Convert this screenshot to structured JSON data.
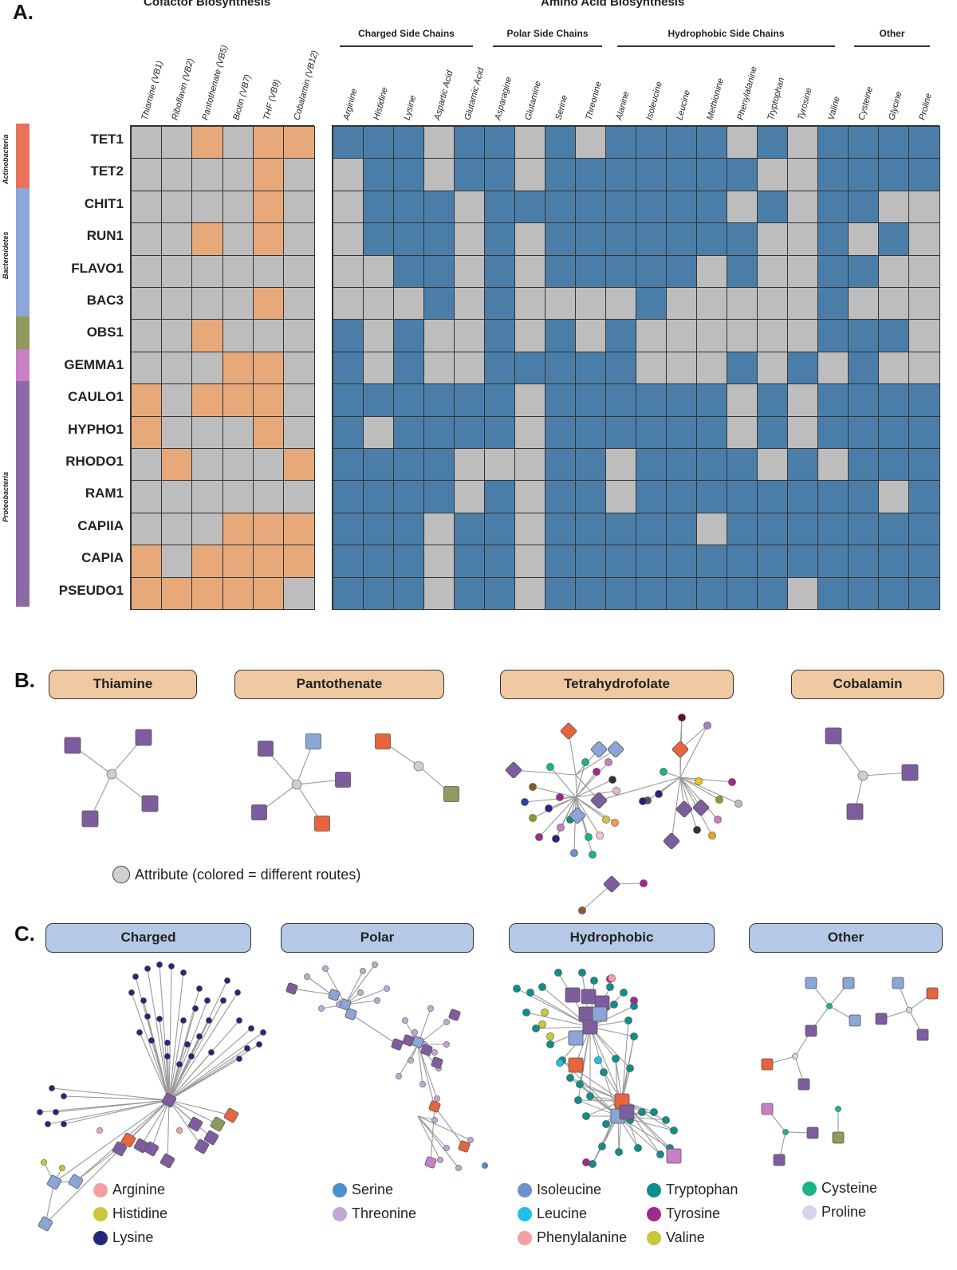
{
  "panels": {
    "a": "A.",
    "b": "B.",
    "c": "C."
  },
  "colors": {
    "present": "#4a7ea8",
    "absent": "#bdbdbd",
    "cofactor": "#e7a87a",
    "edge": "#888888"
  },
  "section_titles": {
    "cofactor": "Cofactor Biosynthesis",
    "amino": "Amino Acid Biosynthesis"
  },
  "aa_groups": [
    "Charged Side Chains",
    "Polar Side Chains",
    "Hydrophobic Side Chains",
    "Other"
  ],
  "cofactor_columns": [
    "Thiamine (VB1)",
    "Riboflavin (VB2)",
    "Pantothenate (VB5)",
    "Biotin (VB7)",
    "THF (VB9)",
    "Cobalamin (VB12)"
  ],
  "aa_columns": [
    "Arginine",
    "Histidine",
    "Lysine",
    "Aspartic Acid",
    "Glutamic Acid",
    "Asparagine",
    "Glutamine",
    "Serine",
    "Threonine",
    "Alanine",
    "Isoleucine",
    "Leucine",
    "Methionine",
    "Phenylalanine",
    "Tryptophan",
    "Tyrosine",
    "Valine",
    "Cysteine",
    "Glycine",
    "Proline"
  ],
  "phyla": [
    {
      "name": "Actinobacteria",
      "color": "#e8735a"
    },
    {
      "name": "Bacteroidetes",
      "color": "#8ea6d8"
    },
    {
      "name": "",
      "color": "#8e9a5e"
    },
    {
      "name": "",
      "color": "#c97fc4"
    },
    {
      "name": "Proteobacteria",
      "color": "#8c6aa6"
    }
  ],
  "rows": [
    {
      "name": "TET1",
      "cof": "001011",
      "aa": "11101101011110101111"
    },
    {
      "name": "TET2",
      "cof": "000010",
      "aa": "01101101111111001111"
    },
    {
      "name": "CHIT1",
      "cof": "000010",
      "aa": "01110111111110101100"
    },
    {
      "name": "RUN1",
      "cof": "001010",
      "aa": "01110101111111001010"
    },
    {
      "name": "FLAVO1",
      "cof": "000000",
      "aa": "00110101111101001100"
    },
    {
      "name": "BAC3",
      "cof": "000010",
      "aa": "00010100001000001000"
    },
    {
      "name": "OBS1",
      "cof": "001000",
      "aa": "10100101010000001110"
    },
    {
      "name": "GEMMA1",
      "cof": "000110",
      "aa": "10100111110001010100"
    },
    {
      "name": "CAULO1",
      "cof": "101110",
      "aa": "11111101111110101111"
    },
    {
      "name": "HYPHO1",
      "cof": "100010",
      "aa": "10111101111110101111"
    },
    {
      "name": "RHODO1",
      "cof": "010001",
      "aa": "11110001101111010111"
    },
    {
      "name": "RAM1",
      "cof": "000000",
      "aa": "11110101101111111101"
    },
    {
      "name": "CAPIIA",
      "cof": "000111",
      "aa": "11101101111101111111"
    },
    {
      "name": "CAPIA",
      "cof": "101111",
      "aa": "11101101111111111111"
    },
    {
      "name": "PSEUDO1",
      "cof": "111110",
      "aa": "11101101111111101111"
    }
  ],
  "cofactor_networks": [
    "Thiamine",
    "Pantothenate",
    "Tetrahydrofolate",
    "Cobalamin"
  ],
  "attribute_legend": "Attribute (colored = different routes)",
  "aa_networks": [
    "Charged",
    "Polar",
    "Hydrophobic",
    "Other"
  ],
  "legends": {
    "charged": [
      {
        "label": "Arginine",
        "color": "#f4a0a0"
      },
      {
        "label": "Histidine",
        "color": "#c8c83a"
      },
      {
        "label": "Lysine",
        "color": "#25267e"
      }
    ],
    "polar": [
      {
        "label": "Serine",
        "color": "#4a8fcf"
      },
      {
        "label": "Threonine",
        "color": "#c2a6d6"
      }
    ],
    "hydro_a": [
      {
        "label": "Isoleucine",
        "color": "#6f8fcf"
      },
      {
        "label": "Leucine",
        "color": "#1ec0e8"
      },
      {
        "label": "Phenylalanine",
        "color": "#f4a0a0"
      }
    ],
    "hydro_b": [
      {
        "label": "Tryptophan",
        "color": "#0e8f88"
      },
      {
        "label": "Tyrosine",
        "color": "#a02a8a"
      },
      {
        "label": "Valine",
        "color": "#c8c83a"
      }
    ],
    "other": [
      {
        "label": "Cysteine",
        "color": "#19b58a"
      },
      {
        "label": "Proline",
        "color": "#d8d3ec"
      }
    ]
  }
}
